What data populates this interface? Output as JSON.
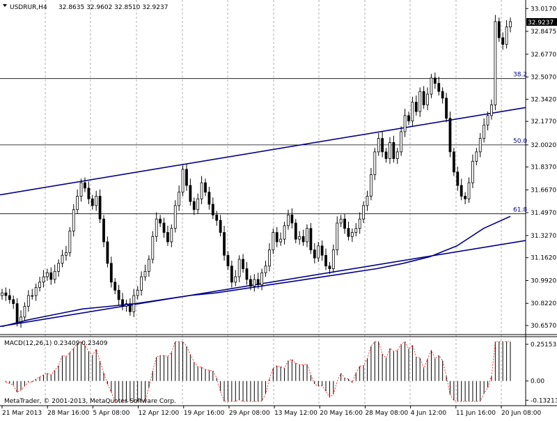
{
  "header": {
    "symbol_tf": "USDRUR,H4",
    "ohlc": "32.8635 32.9602 32.8510 32.9237"
  },
  "price_axis": {
    "ticks": [
      "33.0170",
      "32.8475",
      "32.6770",
      "32.5070",
      "32.3420",
      "32.1770",
      "32.0020",
      "31.8370",
      "31.6670",
      "31.4970",
      "31.3270",
      "31.1620",
      "30.9920",
      "30.8220",
      "30.6570"
    ],
    "current_price": "32.9237"
  },
  "fib_levels": [
    {
      "label": "38.2",
      "value": 32.496
    },
    {
      "label": "50.0",
      "value": 32.002
    },
    {
      "label": "61.8",
      "value": 31.489
    }
  ],
  "macd": {
    "label": "MACD(12,26,1) 0.23409 0.23409",
    "ticks": [
      "0.25153",
      "0.00",
      "-0.13213"
    ]
  },
  "time_axis": {
    "labels": [
      "21 Mar 2013",
      "28 Mar 16:00",
      "5 Apr 08:00",
      "12 Apr 12:00",
      "19 Apr 16:00",
      "29 Apr 08:00",
      "13 May 12:00",
      "20 May 16:00",
      "28 May 08:00",
      "4 Jun 12:00",
      "11 Jun 16:00",
      "20 Jun 08:00"
    ]
  },
  "copyright": "MetaTrader, © 2001-2013, MetaQuotes Software Corp.",
  "colors": {
    "trendline": "#00008b",
    "candle": "#000000",
    "macd_hist": "#000000",
    "macd_signal": "#ff0000",
    "grid": "#777777",
    "current_price_bg": "#000000"
  },
  "chart_data": {
    "type": "candlestick",
    "y_range": [
      30.6,
      33.06
    ],
    "macd_range": [
      -0.15,
      0.28
    ],
    "closes": [
      30.9,
      30.88,
      30.85,
      30.82,
      30.68,
      30.72,
      30.8,
      30.88,
      30.88,
      30.94,
      30.98,
      31.02,
      31.05,
      31.0,
      31.06,
      31.12,
      31.18,
      31.2,
      31.36,
      31.52,
      31.62,
      31.72,
      31.68,
      31.6,
      31.55,
      31.62,
      31.45,
      31.28,
      31.12,
      30.98,
      30.92,
      30.85,
      30.8,
      30.82,
      30.76,
      30.88,
      30.92,
      31.02,
      31.06,
      31.15,
      31.32,
      31.45,
      31.42,
      31.35,
      31.28,
      31.38,
      31.55,
      31.65,
      31.82,
      31.7,
      31.58,
      31.52,
      31.6,
      31.72,
      31.65,
      31.56,
      31.48,
      31.44,
      31.35,
      31.18,
      31.1,
      30.98,
      31.02,
      31.15,
      31.08,
      31.0,
      30.95,
      31.0,
      30.96,
      31.05,
      31.1,
      31.22,
      31.35,
      31.28,
      31.3,
      31.4,
      31.48,
      31.42,
      31.3,
      31.32,
      31.28,
      31.38,
      31.22,
      31.16,
      31.25,
      31.18,
      31.1,
      31.08,
      31.22,
      31.42,
      31.45,
      31.38,
      31.32,
      31.35,
      31.38,
      31.45,
      31.55,
      31.62,
      31.78,
      31.95,
      32.05,
      31.95,
      31.9,
      32.02,
      31.9,
      31.95,
      32.1,
      32.22,
      32.18,
      32.32,
      32.25,
      32.4,
      32.3,
      32.38,
      32.5,
      32.46,
      32.4,
      32.35,
      32.2,
      31.95,
      31.8,
      31.7,
      31.62,
      31.6,
      31.72,
      31.88,
      31.95,
      32.05,
      32.15,
      32.22,
      32.3,
      32.92,
      32.8,
      32.75,
      32.88,
      32.92
    ],
    "series": [
      {
        "name": "moving average",
        "values": [
          30.65,
          30.7,
          30.74,
          30.78,
          30.8,
          30.82,
          30.85,
          30.88,
          30.9,
          30.93,
          30.96,
          30.99,
          31.02,
          31.05,
          31.08,
          31.12,
          31.17,
          31.25,
          31.38,
          31.47
        ]
      },
      {
        "name": "channel upper",
        "values": [
          31.63,
          32.28
        ]
      },
      {
        "name": "channel lower",
        "values": [
          30.65,
          31.29
        ]
      }
    ]
  }
}
